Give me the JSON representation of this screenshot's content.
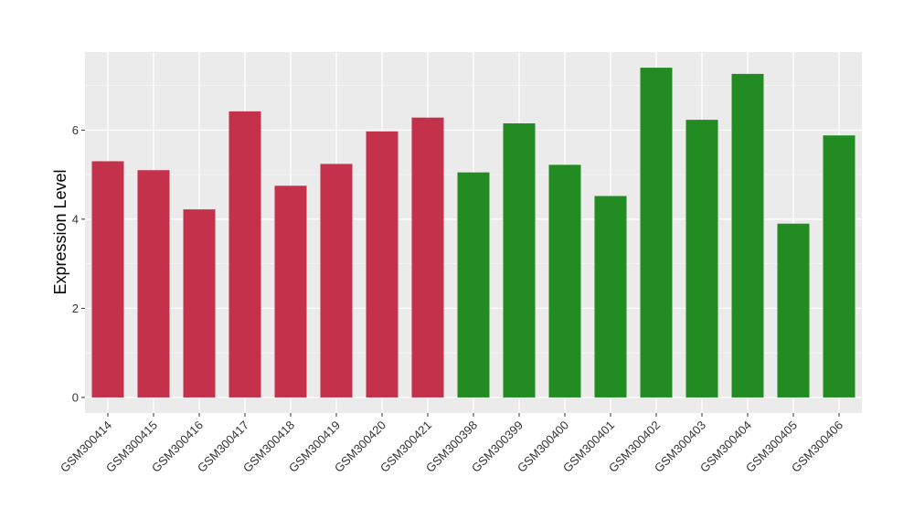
{
  "chart_data": {
    "type": "bar",
    "ylabel": "Expression Level",
    "xlabel": "",
    "ylim": [
      -0.35,
      7.75
    ],
    "yticks": [
      0,
      2,
      4,
      6
    ],
    "grid": true,
    "background": "#ebebeb",
    "categories": [
      "GSM300414",
      "GSM300415",
      "GSM300416",
      "GSM300417",
      "GSM300418",
      "GSM300419",
      "GSM300420",
      "GSM300421",
      "GSM300398",
      "GSM300399",
      "GSM300400",
      "GSM300401",
      "GSM300402",
      "GSM300403",
      "GSM300404",
      "GSM300405",
      "GSM300406"
    ],
    "values": [
      5.3,
      5.1,
      4.22,
      6.42,
      4.75,
      5.24,
      5.97,
      6.28,
      5.05,
      6.15,
      5.22,
      4.52,
      7.4,
      6.23,
      7.26,
      3.9,
      5.88
    ],
    "colors": [
      "#c3314b",
      "#c3314b",
      "#c3314b",
      "#c3314b",
      "#c3314b",
      "#c3314b",
      "#c3314b",
      "#c3314b",
      "#228b22",
      "#228b22",
      "#228b22",
      "#228b22",
      "#228b22",
      "#228b22",
      "#228b22",
      "#228b22",
      "#228b22"
    ]
  }
}
